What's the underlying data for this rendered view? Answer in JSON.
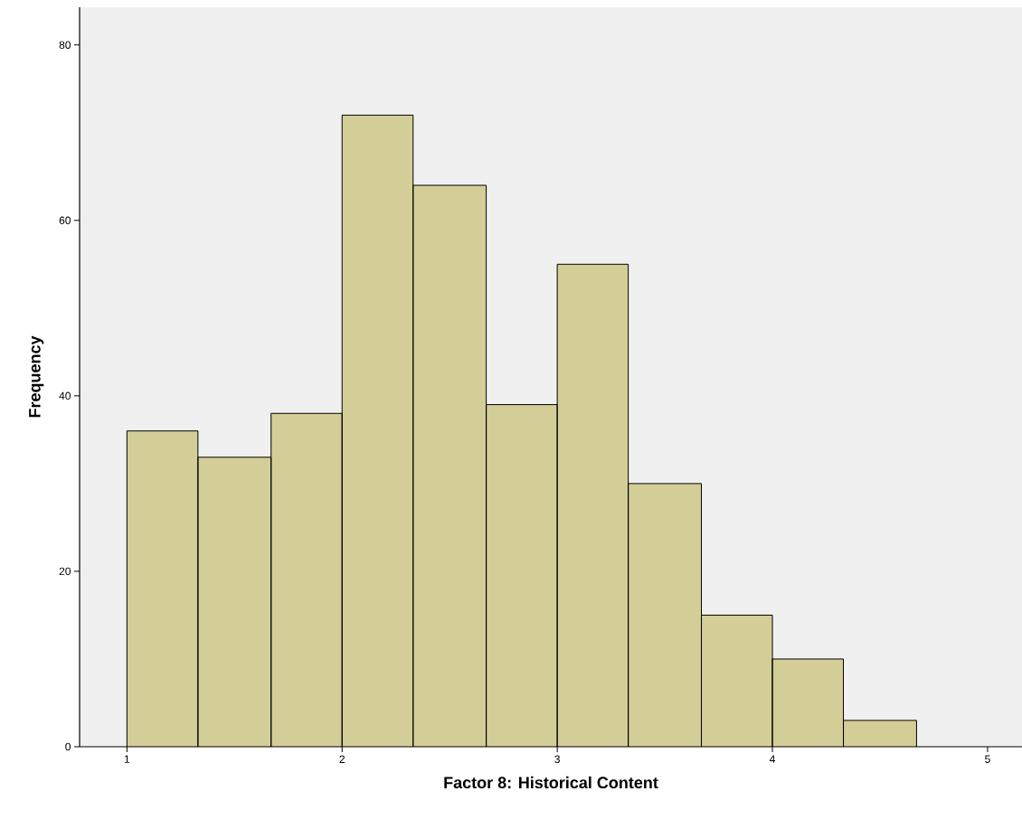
{
  "chart_data": {
    "type": "histogram",
    "xlabel": "Factor 8: Historical Content",
    "ylabel": "Frequency",
    "bins": [
      1,
      1.33,
      1.67,
      2,
      2.33,
      2.67,
      3,
      3.33,
      3.67,
      4,
      4.33,
      4.67
    ],
    "values": [
      36,
      33,
      38,
      72,
      64,
      39,
      55,
      30,
      15,
      10,
      3
    ],
    "color": "#d3ce97",
    "xlim": [
      0.78,
      5.16
    ],
    "ylim": [
      0,
      84.3
    ],
    "xticks": [
      1,
      2,
      3,
      4,
      5
    ],
    "yticks": [
      0,
      20,
      40,
      60,
      80
    ]
  }
}
